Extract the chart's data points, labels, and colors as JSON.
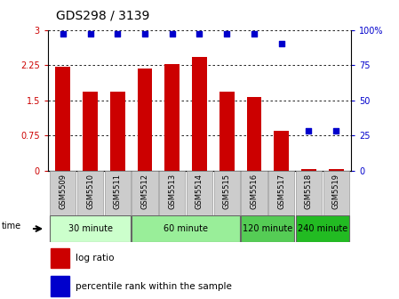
{
  "title": "GDS298 / 3139",
  "samples": [
    "GSM5509",
    "GSM5510",
    "GSM5511",
    "GSM5512",
    "GSM5513",
    "GSM5514",
    "GSM5515",
    "GSM5516",
    "GSM5517",
    "GSM5518",
    "GSM5519"
  ],
  "log_ratio": [
    2.21,
    1.68,
    1.68,
    2.18,
    2.28,
    2.42,
    1.68,
    1.57,
    0.85,
    0.02,
    0.02
  ],
  "percentile": [
    97,
    97,
    97,
    97,
    97,
    97,
    97,
    97,
    90,
    28,
    28
  ],
  "bar_color": "#cc0000",
  "dot_color": "#0000cc",
  "ylim_left": [
    0,
    3
  ],
  "ylim_right": [
    0,
    100
  ],
  "yticks_left": [
    0,
    0.75,
    1.5,
    2.25,
    3
  ],
  "ytick_labels_left": [
    "0",
    "0.75",
    "1.5",
    "2.25",
    "3"
  ],
  "yticks_right": [
    0,
    25,
    50,
    75,
    100
  ],
  "ytick_labels_right": [
    "0",
    "25",
    "50",
    "75",
    "100%"
  ],
  "groups": [
    {
      "label": "30 minute",
      "start": 0,
      "end": 2,
      "color": "#ccffcc"
    },
    {
      "label": "60 minute",
      "start": 3,
      "end": 6,
      "color": "#99ee99"
    },
    {
      "label": "120 minute",
      "start": 7,
      "end": 8,
      "color": "#55cc55"
    },
    {
      "label": "240 minute",
      "start": 9,
      "end": 10,
      "color": "#22bb22"
    }
  ],
  "legend_bar_label": "log ratio",
  "legend_dot_label": "percentile rank within the sample",
  "time_label": "time",
  "bar_color_hex": "#cc0000",
  "dot_color_hex": "#0000cc",
  "sample_box_color": "#cccccc",
  "title_fontsize": 10,
  "tick_fontsize": 7,
  "label_fontsize": 7,
  "group_fontsize": 8
}
